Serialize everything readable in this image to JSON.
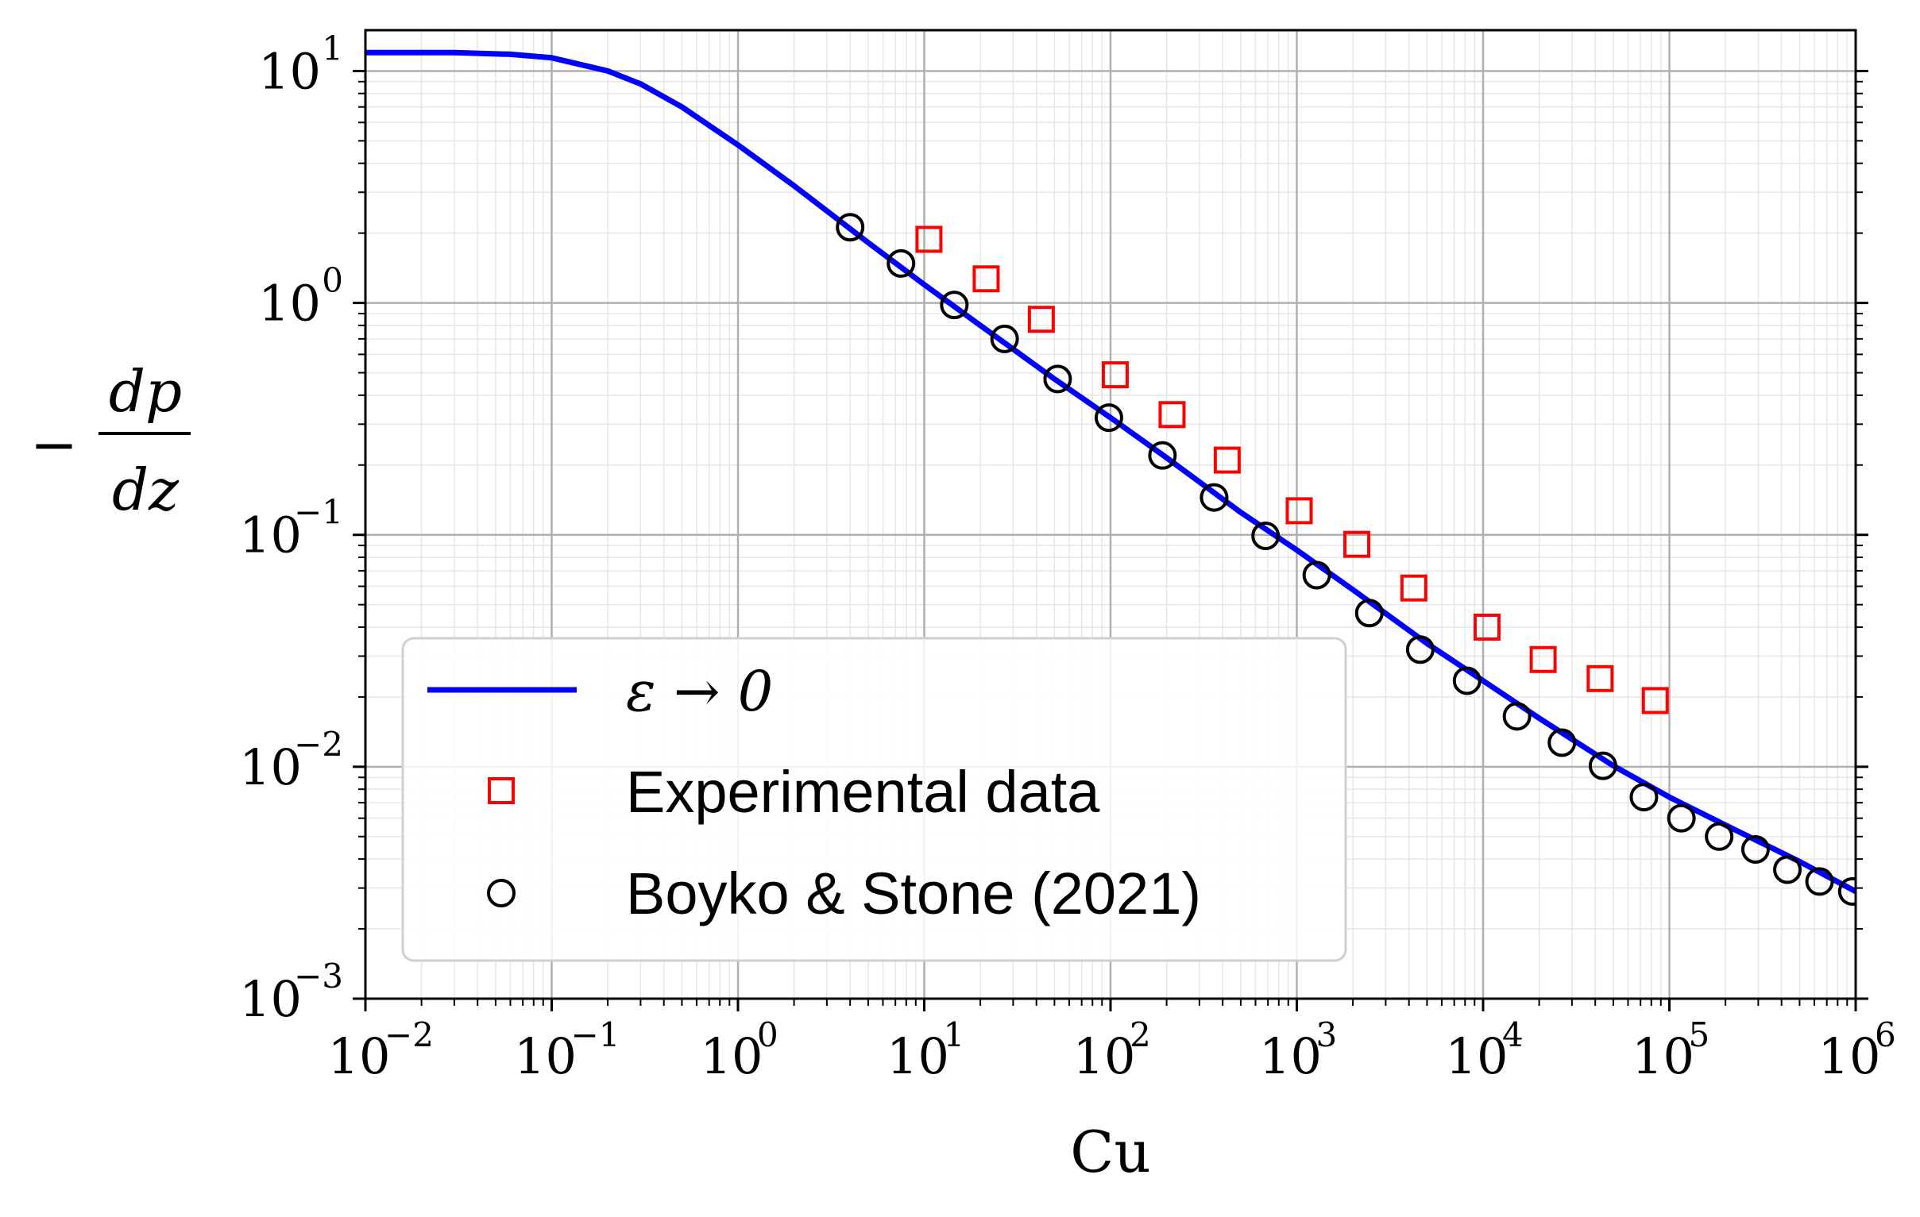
{
  "chart_data": {
    "type": "scatter",
    "x_scale": "log",
    "y_scale": "log",
    "xlabel": "Cu",
    "ylabel": {
      "prefix": "−",
      "numerator": "dp",
      "denominator": "dz"
    },
    "xlim": [
      0.01,
      1000000
    ],
    "ylim": [
      0.001,
      15
    ],
    "x_ticks": [
      {
        "base": "10",
        "exp": "−2"
      },
      {
        "base": "10",
        "exp": "−1"
      },
      {
        "base": "10",
        "exp": "0"
      },
      {
        "base": "10",
        "exp": "1"
      },
      {
        "base": "10",
        "exp": "2"
      },
      {
        "base": "10",
        "exp": "3"
      },
      {
        "base": "10",
        "exp": "4"
      },
      {
        "base": "10",
        "exp": "5"
      },
      {
        "base": "10",
        "exp": "6"
      }
    ],
    "y_ticks": [
      {
        "base": "10",
        "exp": "1"
      },
      {
        "base": "10",
        "exp": "0"
      },
      {
        "base": "10",
        "exp": "−1"
      },
      {
        "base": "10",
        "exp": "−2"
      },
      {
        "base": "10",
        "exp": "−3"
      }
    ],
    "grid": true,
    "legend_position": "lower-left",
    "series": [
      {
        "name": "ε → 0",
        "kind": "line",
        "color": "#0000ff",
        "x": [
          0.01,
          0.03,
          0.06,
          0.1,
          0.2,
          0.3,
          0.5,
          1,
          2,
          5,
          10,
          20,
          50,
          100,
          200,
          500,
          1000,
          2000,
          5000,
          10000,
          20000,
          50000,
          100000,
          200000,
          500000,
          1000000
        ],
        "y": [
          12.0,
          12.0,
          11.8,
          11.4,
          10.0,
          8.8,
          7.0,
          4.8,
          3.2,
          1.82,
          1.2,
          0.8,
          0.47,
          0.32,
          0.215,
          0.125,
          0.086,
          0.058,
          0.034,
          0.0235,
          0.0162,
          0.0101,
          0.0074,
          0.0056,
          0.0039,
          0.0029
        ]
      },
      {
        "name": "Experimental data",
        "kind": "marker",
        "marker": "square",
        "color": "#ff0000",
        "x": [
          10.6,
          21.5,
          42.5,
          106,
          214,
          423,
          1030,
          2100,
          4250,
          10500,
          21000,
          42500,
          84000
        ],
        "y": [
          1.88,
          1.27,
          0.85,
          0.49,
          0.33,
          0.21,
          0.127,
          0.091,
          0.059,
          0.04,
          0.029,
          0.024,
          0.0193
        ]
      },
      {
        "name": "Boyko & Stone (2021)",
        "kind": "marker",
        "marker": "circle",
        "color": "#000000",
        "x": [
          4.0,
          7.5,
          14.5,
          27,
          52,
          98,
          190,
          360,
          680,
          1280,
          2450,
          4600,
          8200,
          15200,
          26500,
          44000,
          73000,
          116000,
          185000,
          290000,
          430000,
          640000,
          960000
        ],
        "y": [
          2.12,
          1.48,
          0.98,
          0.7,
          0.47,
          0.32,
          0.22,
          0.145,
          0.099,
          0.067,
          0.046,
          0.032,
          0.0235,
          0.0165,
          0.0127,
          0.0101,
          0.0074,
          0.006,
          0.005,
          0.0044,
          0.0036,
          0.0032,
          0.0029
        ]
      }
    ]
  },
  "legend": {
    "line_label": "ε → 0",
    "exp_label": "Experimental data",
    "model_label": "Boyko & Stone (2021)"
  }
}
